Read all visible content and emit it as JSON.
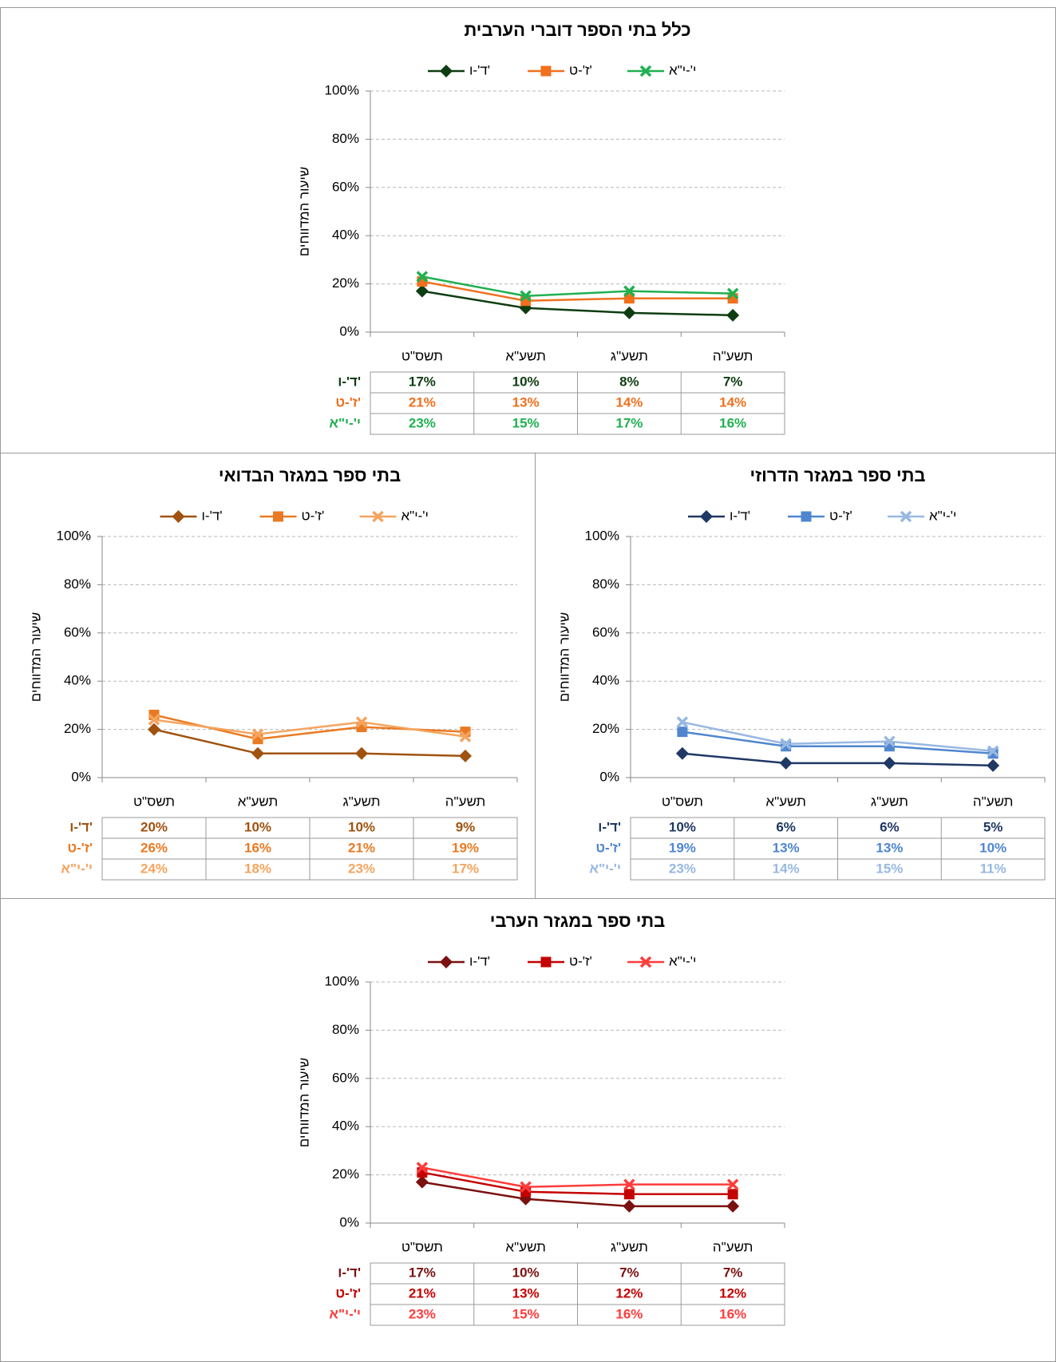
{
  "chart_data": [
    {
      "type": "line",
      "title": "כלל בתי הספר דוברי הערבית",
      "y_label": "שיעור המדווחים",
      "categories": [
        "תשס\"ט",
        "תשע\"א",
        "תשע\"ג",
        "תשע\"ה"
      ],
      "ylim": [
        0,
        100
      ],
      "yticks": [
        {
          "value": 0,
          "label": "0%"
        },
        {
          "value": 20,
          "label": "20%"
        },
        {
          "value": 40,
          "label": "40%"
        },
        {
          "value": 60,
          "label": "60%"
        },
        {
          "value": 80,
          "label": "80%"
        },
        {
          "value": 100,
          "label": "100%"
        }
      ],
      "grid": true,
      "series": [
        {
          "name": "ד'-ו'",
          "color": "#0f3d12",
          "marker": "diamond",
          "values": [
            17,
            10,
            8,
            7
          ],
          "value_labels": [
            "17%",
            "10%",
            "8%",
            "7%"
          ]
        },
        {
          "name": "ז'-ט'",
          "color": "#f0701e",
          "marker": "square",
          "values": [
            21,
            13,
            14,
            14
          ],
          "value_labels": [
            "21%",
            "13%",
            "14%",
            "14%"
          ]
        },
        {
          "name": "י'-י\"א",
          "color": "#20b050",
          "marker": "x",
          "values": [
            23,
            15,
            17,
            16
          ],
          "value_labels": [
            "23%",
            "15%",
            "17%",
            "16%"
          ]
        }
      ]
    },
    {
      "type": "line",
      "title": "בתי ספר במגזר הבדואי",
      "y_label": "שיעור המדווחים",
      "categories": [
        "תשס\"ט",
        "תשע\"א",
        "תשע\"ג",
        "תשע\"ה"
      ],
      "ylim": [
        0,
        100
      ],
      "yticks": [
        {
          "value": 0,
          "label": "0%"
        },
        {
          "value": 20,
          "label": "20%"
        },
        {
          "value": 40,
          "label": "40%"
        },
        {
          "value": 60,
          "label": "60%"
        },
        {
          "value": 80,
          "label": "80%"
        },
        {
          "value": 100,
          "label": "100%"
        }
      ],
      "grid": true,
      "series": [
        {
          "name": "ד'-ו'",
          "color": "#a0520f",
          "marker": "diamond",
          "values": [
            20,
            10,
            10,
            9
          ],
          "value_labels": [
            "20%",
            "10%",
            "10%",
            "9%"
          ]
        },
        {
          "name": "ז'-ט'",
          "color": "#ea7a22",
          "marker": "square",
          "values": [
            26,
            16,
            21,
            19
          ],
          "value_labels": [
            "26%",
            "16%",
            "21%",
            "19%"
          ]
        },
        {
          "name": "י'-י\"א",
          "color": "#f5a45e",
          "marker": "x",
          "values": [
            24,
            18,
            23,
            17
          ],
          "value_labels": [
            "24%",
            "18%",
            "23%",
            "17%"
          ]
        }
      ]
    },
    {
      "type": "line",
      "title": "בתי ספר במגזר הדרוזי",
      "y_label": "שיעור המדווחים",
      "categories": [
        "תשס\"ט",
        "תשע\"א",
        "תשע\"ג",
        "תשע\"ה"
      ],
      "ylim": [
        0,
        100
      ],
      "yticks": [
        {
          "value": 0,
          "label": "0%"
        },
        {
          "value": 20,
          "label": "20%"
        },
        {
          "value": 40,
          "label": "40%"
        },
        {
          "value": 60,
          "label": "60%"
        },
        {
          "value": 80,
          "label": "80%"
        },
        {
          "value": 100,
          "label": "100%"
        }
      ],
      "grid": true,
      "series": [
        {
          "name": "ד'-ו'",
          "color": "#1f3864",
          "marker": "diamond",
          "values": [
            10,
            6,
            6,
            5
          ],
          "value_labels": [
            "10%",
            "6%",
            "6%",
            "5%"
          ]
        },
        {
          "name": "ז'-ט'",
          "color": "#4f86cf",
          "marker": "square",
          "values": [
            19,
            13,
            13,
            10
          ],
          "value_labels": [
            "19%",
            "13%",
            "13%",
            "10%"
          ]
        },
        {
          "name": "י'-י\"א",
          "color": "#98b8e2",
          "marker": "x",
          "values": [
            23,
            14,
            15,
            11
          ],
          "value_labels": [
            "23%",
            "14%",
            "15%",
            "11%"
          ]
        }
      ]
    },
    {
      "type": "line",
      "title": "בתי ספר במגזר הערבי",
      "y_label": "שיעור המדווחים",
      "categories": [
        "תשס\"ט",
        "תשע\"א",
        "תשע\"ג",
        "תשע\"ה"
      ],
      "ylim": [
        0,
        100
      ],
      "yticks": [
        {
          "value": 0,
          "label": "0%"
        },
        {
          "value": 20,
          "label": "20%"
        },
        {
          "value": 40,
          "label": "40%"
        },
        {
          "value": 60,
          "label": "60%"
        },
        {
          "value": 80,
          "label": "80%"
        },
        {
          "value": 100,
          "label": "100%"
        }
      ],
      "grid": true,
      "series": [
        {
          "name": "ד'-ו'",
          "color": "#7a1010",
          "marker": "diamond",
          "values": [
            17,
            10,
            7,
            7
          ],
          "value_labels": [
            "17%",
            "10%",
            "7%",
            "7%"
          ]
        },
        {
          "name": "ז'-ט'",
          "color": "#c40000",
          "marker": "square",
          "values": [
            21,
            13,
            12,
            12
          ],
          "value_labels": [
            "21%",
            "13%",
            "12%",
            "12%"
          ]
        },
        {
          "name": "י'-י\"א",
          "color": "#ff3c3c",
          "marker": "x",
          "values": [
            23,
            15,
            16,
            16
          ],
          "value_labels": [
            "23%",
            "15%",
            "16%",
            "16%"
          ]
        }
      ]
    }
  ]
}
